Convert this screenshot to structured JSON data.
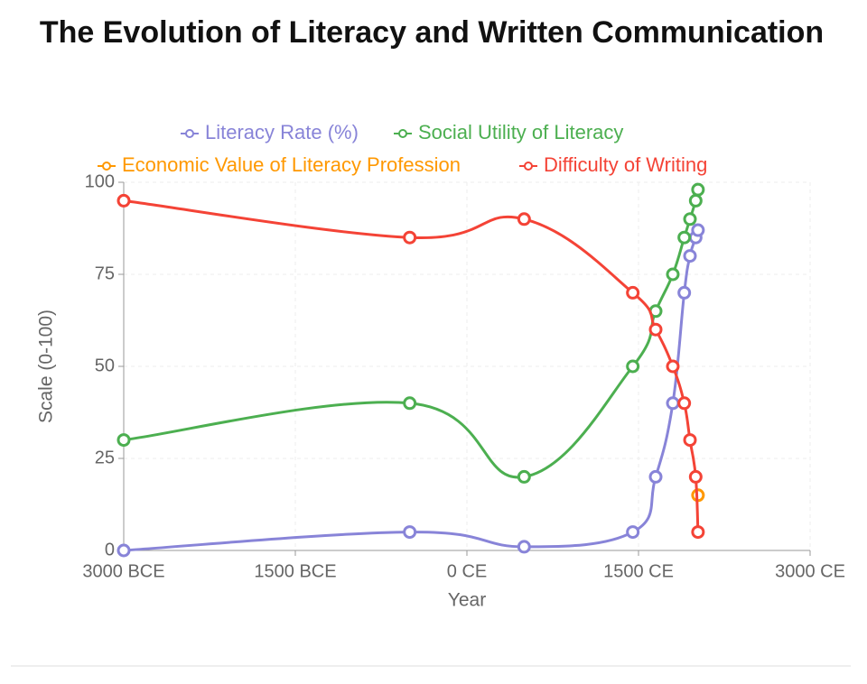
{
  "chart_data": {
    "type": "line",
    "title": "The Evolution of Literacy and Written Communication",
    "x_label": "Year",
    "y_label": "Scale (0-100)",
    "xlim": [
      -3000,
      3000
    ],
    "xticks": [
      {
        "value": -3000,
        "label": "3000 BCE"
      },
      {
        "value": -1500,
        "label": "1500 BCE"
      },
      {
        "value": 0,
        "label": "0 CE"
      },
      {
        "value": 1500,
        "label": "1500 CE"
      },
      {
        "value": 3000,
        "label": "3000 CE"
      }
    ],
    "ylim": [
      0,
      100
    ],
    "yticks": [
      0,
      25,
      50,
      75,
      100
    ],
    "grid": true,
    "series": [
      {
        "name": "Literacy Rate (%)",
        "color": "#8884d8",
        "x": [
          -3000,
          -500,
          500,
          1450,
          1650,
          1800,
          1900,
          1950,
          2000,
          2020
        ],
        "values": [
          0,
          5,
          1,
          5,
          20,
          40,
          70,
          80,
          85,
          87
        ]
      },
      {
        "name": "Social Utility of Literacy",
        "color": "#4caf50",
        "x": [
          -3000,
          -500,
          500,
          1450,
          1650,
          1800,
          1900,
          1950,
          2000,
          2020
        ],
        "values": [
          30,
          40,
          20,
          50,
          65,
          75,
          85,
          90,
          95,
          98
        ]
      },
      {
        "name": "Economic Value of Literacy Profession",
        "color": "#ff9800",
        "x": [
          2020
        ],
        "values": [
          15
        ]
      },
      {
        "name": "Difficulty of Writing",
        "color": "#f44336",
        "x": [
          -3000,
          -500,
          500,
          1450,
          1650,
          1800,
          1900,
          1950,
          2000,
          2020
        ],
        "values": [
          95,
          85,
          90,
          70,
          60,
          50,
          40,
          30,
          20,
          5
        ]
      }
    ]
  }
}
